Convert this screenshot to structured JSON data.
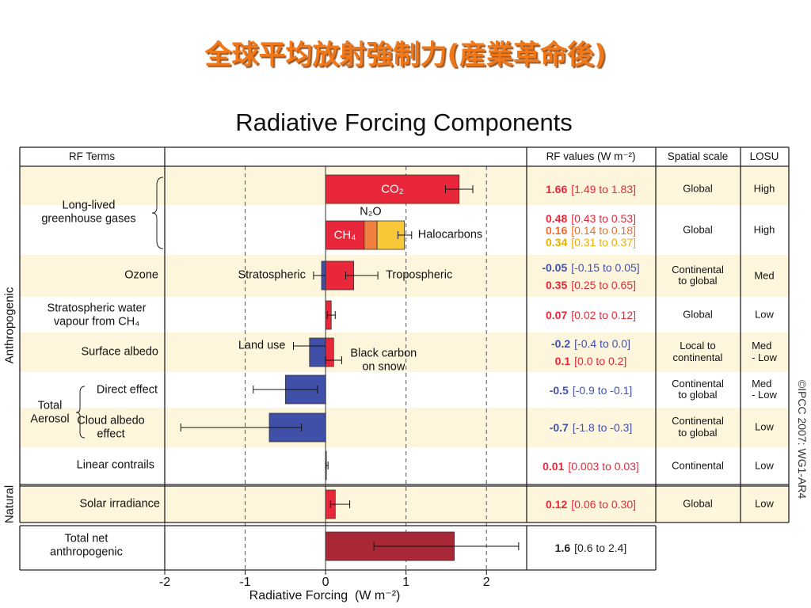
{
  "heading": "全球平均放射強制力(産業革命後)",
  "credit": "©IPCC 2007: WG1-AR4",
  "chart_data": {
    "type": "hbar",
    "title": "Radiative Forcing Components",
    "columns": [
      "RF Terms",
      "RF values (W m⁻²)",
      "Spatial scale",
      "LOSU"
    ],
    "sections": [
      "Anthropogenic",
      "Natural"
    ],
    "xlabel": "Radiative Forcing  (W m⁻²)",
    "xlim": [
      -2,
      2.5
    ],
    "xticks": [
      -2,
      -1,
      0,
      1,
      2
    ],
    "grid": true,
    "rows": [
      {
        "term": "Long-lived\ngreenhouse gases",
        "spatial": "Global",
        "losu": "High",
        "bars": [
          {
            "name": "CO₂",
            "value": 1.66,
            "low": 1.49,
            "high": 1.83,
            "range_label": "[1.49 to 1.83]",
            "color": "#e8283a"
          }
        ]
      },
      {
        "spatial": "Global",
        "losu": "High",
        "stack": true,
        "stack_range": [
          0.9,
          1.07
        ],
        "bars": [
          {
            "name": "CH₄",
            "value": 0.48,
            "low": 0.43,
            "high": 0.53,
            "range_label": "[0.43 to 0.53]",
            "color": "#e8283a"
          },
          {
            "name": "N₂O",
            "value": 0.16,
            "low": 0.14,
            "high": 0.18,
            "range_label": "[0.14 to 0.18]",
            "color": "#f08040",
            "text_color": "#f06a28"
          },
          {
            "name": "Halocarbons",
            "value": 0.34,
            "low": 0.31,
            "high": 0.37,
            "range_label": "[0.31 to 0.37]",
            "color": "#f8c838",
            "text_color": "#e8b000"
          }
        ]
      },
      {
        "term": "Ozone",
        "spatial": "Continental\nto global",
        "losu": "Med",
        "bars": [
          {
            "name": "Stratospheric",
            "value": -0.05,
            "low": -0.15,
            "high": 0.05,
            "range_label": "[-0.15 to 0.05]",
            "color": "#4050a8"
          },
          {
            "name": "Tropospheric",
            "value": 0.35,
            "low": 0.25,
            "high": 0.65,
            "range_label": "[0.25 to 0.65]",
            "color": "#e8283a"
          }
        ]
      },
      {
        "term": "Stratospheric water\nvapour from CH₄",
        "spatial": "Global",
        "losu": "Low",
        "bars": [
          {
            "value": 0.07,
            "low": 0.02,
            "high": 0.12,
            "range_label": "[0.02 to 0.12]",
            "color": "#e8283a"
          }
        ]
      },
      {
        "term": "Surface albedo",
        "spatial": "Local to\ncontinental",
        "losu": "Med\n- Low",
        "bars": [
          {
            "name": "Land use",
            "value": -0.2,
            "low": -0.4,
            "high": 0,
            "range_label": "[-0.4 to 0.0]",
            "color": "#4050a8"
          },
          {
            "name": "Black carbon\non snow",
            "value": 0.1,
            "low": 0,
            "high": 0.2,
            "range_label": "[0.0 to 0.2]",
            "color": "#e8283a"
          }
        ]
      },
      {
        "group": "Total\nAerosol",
        "term": "Direct effect",
        "spatial": "Continental\nto global",
        "losu": "Med\n- Low",
        "bars": [
          {
            "value": -0.5,
            "low": -0.9,
            "high": -0.1,
            "range_label": "[-0.9 to -0.1]",
            "color": "#4050a8"
          }
        ]
      },
      {
        "term": "Cloud albedo\neffect",
        "spatial": "Continental\nto global",
        "losu": "Low",
        "bars": [
          {
            "value": -0.7,
            "low": -1.8,
            "high": -0.3,
            "range_label": "[-1.8 to -0.3]",
            "color": "#4050a8"
          }
        ]
      },
      {
        "term": "Linear contrails",
        "spatial": "Continental",
        "losu": "Low",
        "bars": [
          {
            "value": 0.01,
            "low": 0.003,
            "high": 0.03,
            "range_label": "[0.003 to 0.03]",
            "color": "#e8283a"
          }
        ]
      },
      {
        "term": "Solar irradiance",
        "spatial": "Global",
        "losu": "Low",
        "bars": [
          {
            "value": 0.12,
            "low": 0.06,
            "high": 0.3,
            "range_label": "[0.06 to 0.30]",
            "color": "#e8283a"
          }
        ]
      },
      {
        "term": "Total net\nanthropogenic",
        "bars": [
          {
            "value": 1.6,
            "low": 0.6,
            "high": 2.4,
            "range_label": "[0.6 to 2.4]",
            "color": "#a82838",
            "text_color": "#222"
          }
        ]
      }
    ]
  }
}
